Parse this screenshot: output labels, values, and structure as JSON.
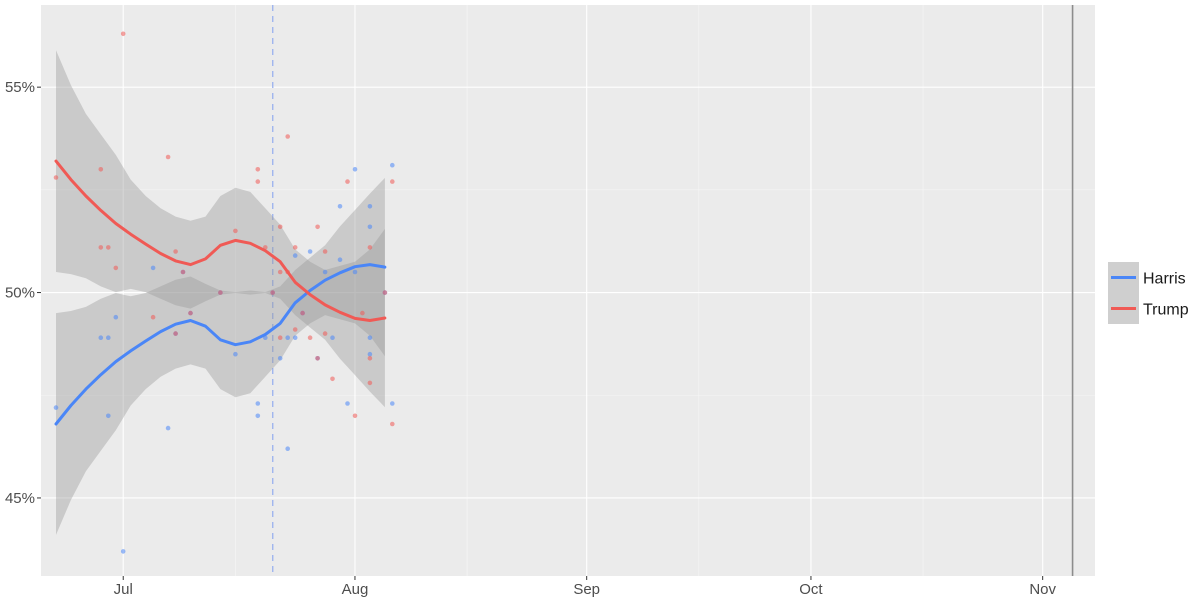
{
  "chart_data": {
    "type": "scatter",
    "title": "",
    "xlabel": "",
    "ylabel": "",
    "x_range": [
      "2024-06-20",
      "2024-11-08"
    ],
    "y_range": [
      0.431,
      0.57
    ],
    "y_ticks": [
      {
        "value": 0.45,
        "label": "45%"
      },
      {
        "value": 0.5,
        "label": "50%"
      },
      {
        "value": 0.55,
        "label": "55%"
      }
    ],
    "x_ticks": [
      {
        "date": "2024-07-01",
        "label": "Jul"
      },
      {
        "date": "2024-08-01",
        "label": "Aug"
      },
      {
        "date": "2024-09-01",
        "label": "Sep"
      },
      {
        "date": "2024-10-01",
        "label": "Oct"
      },
      {
        "date": "2024-11-01",
        "label": "Nov"
      }
    ],
    "vertical_lines": [
      {
        "date": "2024-07-21",
        "style": "dashed",
        "color": "#9fb5ef"
      },
      {
        "date": "2024-11-05",
        "style": "solid",
        "color": "#8c8c8c"
      }
    ],
    "grid": true,
    "legend_position": "right",
    "series": [
      {
        "name": "Harris",
        "color": "#4a86f7",
        "points": [
          [
            "2024-06-22",
            0.472
          ],
          [
            "2024-06-28",
            0.489
          ],
          [
            "2024-06-29",
            0.47
          ],
          [
            "2024-06-29",
            0.489
          ],
          [
            "2024-06-30",
            0.494
          ],
          [
            "2024-07-01",
            0.437
          ],
          [
            "2024-07-05",
            0.506
          ],
          [
            "2024-07-07",
            0.467
          ],
          [
            "2024-07-08",
            0.49
          ],
          [
            "2024-07-09",
            0.505
          ],
          [
            "2024-07-10",
            0.495
          ],
          [
            "2024-07-14",
            0.5
          ],
          [
            "2024-07-16",
            0.485
          ],
          [
            "2024-07-19",
            0.473
          ],
          [
            "2024-07-19",
            0.47
          ],
          [
            "2024-07-20",
            0.489
          ],
          [
            "2024-07-21",
            0.5
          ],
          [
            "2024-07-22",
            0.484
          ],
          [
            "2024-07-23",
            0.489
          ],
          [
            "2024-07-23",
            0.462
          ],
          [
            "2024-07-24",
            0.509
          ],
          [
            "2024-07-24",
            0.489
          ],
          [
            "2024-07-25",
            0.495
          ],
          [
            "2024-07-26",
            0.51
          ],
          [
            "2024-07-27",
            0.484
          ],
          [
            "2024-07-28",
            0.505
          ],
          [
            "2024-07-29",
            0.489
          ],
          [
            "2024-07-30",
            0.521
          ],
          [
            "2024-07-30",
            0.508
          ],
          [
            "2024-07-31",
            0.473
          ],
          [
            "2024-08-01",
            0.53
          ],
          [
            "2024-08-01",
            0.505
          ],
          [
            "2024-08-03",
            0.521
          ],
          [
            "2024-08-03",
            0.516
          ],
          [
            "2024-08-03",
            0.489
          ],
          [
            "2024-08-03",
            0.485
          ],
          [
            "2024-08-05",
            0.5
          ],
          [
            "2024-08-06",
            0.531
          ],
          [
            "2024-08-06",
            0.473
          ]
        ],
        "smooth": [
          {
            "date": "2024-06-22",
            "fit": 0.468,
            "lo": 0.441,
            "hi": 0.495
          },
          {
            "date": "2024-06-24",
            "fit": 0.4725,
            "lo": 0.4495,
            "hi": 0.4955
          },
          {
            "date": "2024-06-26",
            "fit": 0.4765,
            "lo": 0.4565,
            "hi": 0.4965
          },
          {
            "date": "2024-06-28",
            "fit": 0.48,
            "lo": 0.4615,
            "hi": 0.4985
          },
          {
            "date": "2024-06-30",
            "fit": 0.4832,
            "lo": 0.4665,
            "hi": 0.4999
          },
          {
            "date": "2024-07-02",
            "fit": 0.4858,
            "lo": 0.4725,
            "hi": 0.4991
          },
          {
            "date": "2024-07-04",
            "fit": 0.4882,
            "lo": 0.4765,
            "hi": 0.4999
          },
          {
            "date": "2024-07-06",
            "fit": 0.4905,
            "lo": 0.4795,
            "hi": 0.5015
          },
          {
            "date": "2024-07-08",
            "fit": 0.4923,
            "lo": 0.4815,
            "hi": 0.5031
          },
          {
            "date": "2024-07-10",
            "fit": 0.4932,
            "lo": 0.4825,
            "hi": 0.5039
          },
          {
            "date": "2024-07-12",
            "fit": 0.4918,
            "lo": 0.4815,
            "hi": 0.5021
          },
          {
            "date": "2024-07-14",
            "fit": 0.4885,
            "lo": 0.4765,
            "hi": 0.5005
          },
          {
            "date": "2024-07-16",
            "fit": 0.4873,
            "lo": 0.4745,
            "hi": 0.5001
          },
          {
            "date": "2024-07-18",
            "fit": 0.488,
            "lo": 0.4755,
            "hi": 0.5005
          },
          {
            "date": "2024-07-20",
            "fit": 0.4898,
            "lo": 0.4795,
            "hi": 0.5001
          },
          {
            "date": "2024-07-22",
            "fit": 0.4925,
            "lo": 0.4835,
            "hi": 0.5015
          },
          {
            "date": "2024-07-24",
            "fit": 0.4975,
            "lo": 0.4895,
            "hi": 0.5055
          },
          {
            "date": "2024-07-26",
            "fit": 0.5005,
            "lo": 0.4925,
            "hi": 0.5085
          },
          {
            "date": "2024-07-28",
            "fit": 0.503,
            "lo": 0.4945,
            "hi": 0.5115
          },
          {
            "date": "2024-07-30",
            "fit": 0.5048,
            "lo": 0.4935,
            "hi": 0.5161
          },
          {
            "date": "2024-08-01",
            "fit": 0.5063,
            "lo": 0.4925,
            "hi": 0.5201
          },
          {
            "date": "2024-08-03",
            "fit": 0.5068,
            "lo": 0.4895,
            "hi": 0.5241
          },
          {
            "date": "2024-08-05",
            "fit": 0.5062,
            "lo": 0.4845,
            "hi": 0.5279
          }
        ]
      },
      {
        "name": "Trump",
        "color": "#f05a55",
        "points": [
          [
            "2024-06-22",
            0.528
          ],
          [
            "2024-06-28",
            0.53
          ],
          [
            "2024-06-28",
            0.511
          ],
          [
            "2024-06-29",
            0.511
          ],
          [
            "2024-06-30",
            0.506
          ],
          [
            "2024-07-01",
            0.563
          ],
          [
            "2024-07-05",
            0.494
          ],
          [
            "2024-07-07",
            0.533
          ],
          [
            "2024-07-08",
            0.51
          ],
          [
            "2024-07-08",
            0.49
          ],
          [
            "2024-07-09",
            0.505
          ],
          [
            "2024-07-10",
            0.495
          ],
          [
            "2024-07-14",
            0.5
          ],
          [
            "2024-07-16",
            0.515
          ],
          [
            "2024-07-19",
            0.53
          ],
          [
            "2024-07-19",
            0.527
          ],
          [
            "2024-07-20",
            0.511
          ],
          [
            "2024-07-21",
            0.5
          ],
          [
            "2024-07-22",
            0.516
          ],
          [
            "2024-07-22",
            0.505
          ],
          [
            "2024-07-22",
            0.489
          ],
          [
            "2024-07-23",
            0.538
          ],
          [
            "2024-07-23",
            0.505
          ],
          [
            "2024-07-24",
            0.511
          ],
          [
            "2024-07-24",
            0.491
          ],
          [
            "2024-07-25",
            0.495
          ],
          [
            "2024-07-26",
            0.489
          ],
          [
            "2024-07-27",
            0.516
          ],
          [
            "2024-07-27",
            0.484
          ],
          [
            "2024-07-28",
            0.51
          ],
          [
            "2024-07-28",
            0.49
          ],
          [
            "2024-07-29",
            0.479
          ],
          [
            "2024-07-31",
            0.527
          ],
          [
            "2024-08-01",
            0.47
          ],
          [
            "2024-08-02",
            0.495
          ],
          [
            "2024-08-03",
            0.511
          ],
          [
            "2024-08-03",
            0.484
          ],
          [
            "2024-08-03",
            0.478
          ],
          [
            "2024-08-05",
            0.5
          ],
          [
            "2024-08-06",
            0.527
          ],
          [
            "2024-08-06",
            0.468
          ]
        ],
        "smooth": [
          {
            "date": "2024-06-22",
            "fit": 0.532,
            "lo": 0.505,
            "hi": 0.559
          },
          {
            "date": "2024-06-24",
            "fit": 0.5275,
            "lo": 0.5045,
            "hi": 0.5505
          },
          {
            "date": "2024-06-26",
            "fit": 0.5235,
            "lo": 0.5035,
            "hi": 0.5435
          },
          {
            "date": "2024-06-28",
            "fit": 0.52,
            "lo": 0.5015,
            "hi": 0.5385
          },
          {
            "date": "2024-06-30",
            "fit": 0.5168,
            "lo": 0.5001,
            "hi": 0.5335
          },
          {
            "date": "2024-07-02",
            "fit": 0.5142,
            "lo": 0.5009,
            "hi": 0.5275
          },
          {
            "date": "2024-07-04",
            "fit": 0.5118,
            "lo": 0.5001,
            "hi": 0.5235
          },
          {
            "date": "2024-07-06",
            "fit": 0.5095,
            "lo": 0.4985,
            "hi": 0.5205
          },
          {
            "date": "2024-07-08",
            "fit": 0.5077,
            "lo": 0.4969,
            "hi": 0.5185
          },
          {
            "date": "2024-07-10",
            "fit": 0.5068,
            "lo": 0.4961,
            "hi": 0.5175
          },
          {
            "date": "2024-07-12",
            "fit": 0.5082,
            "lo": 0.4979,
            "hi": 0.5185
          },
          {
            "date": "2024-07-14",
            "fit": 0.5115,
            "lo": 0.4995,
            "hi": 0.5235
          },
          {
            "date": "2024-07-16",
            "fit": 0.5127,
            "lo": 0.4999,
            "hi": 0.5255
          },
          {
            "date": "2024-07-18",
            "fit": 0.512,
            "lo": 0.4995,
            "hi": 0.5245
          },
          {
            "date": "2024-07-20",
            "fit": 0.5102,
            "lo": 0.4999,
            "hi": 0.5205
          },
          {
            "date": "2024-07-22",
            "fit": 0.5075,
            "lo": 0.4985,
            "hi": 0.5165
          },
          {
            "date": "2024-07-24",
            "fit": 0.5025,
            "lo": 0.4945,
            "hi": 0.5105
          },
          {
            "date": "2024-07-26",
            "fit": 0.4995,
            "lo": 0.4915,
            "hi": 0.5075
          },
          {
            "date": "2024-07-28",
            "fit": 0.497,
            "lo": 0.4885,
            "hi": 0.5055
          },
          {
            "date": "2024-07-30",
            "fit": 0.4952,
            "lo": 0.4839,
            "hi": 0.5065
          },
          {
            "date": "2024-08-01",
            "fit": 0.4937,
            "lo": 0.4799,
            "hi": 0.5075
          },
          {
            "date": "2024-08-03",
            "fit": 0.4932,
            "lo": 0.4759,
            "hi": 0.5105
          },
          {
            "date": "2024-08-05",
            "fit": 0.4938,
            "lo": 0.4721,
            "hi": 0.5155
          }
        ]
      }
    ]
  }
}
